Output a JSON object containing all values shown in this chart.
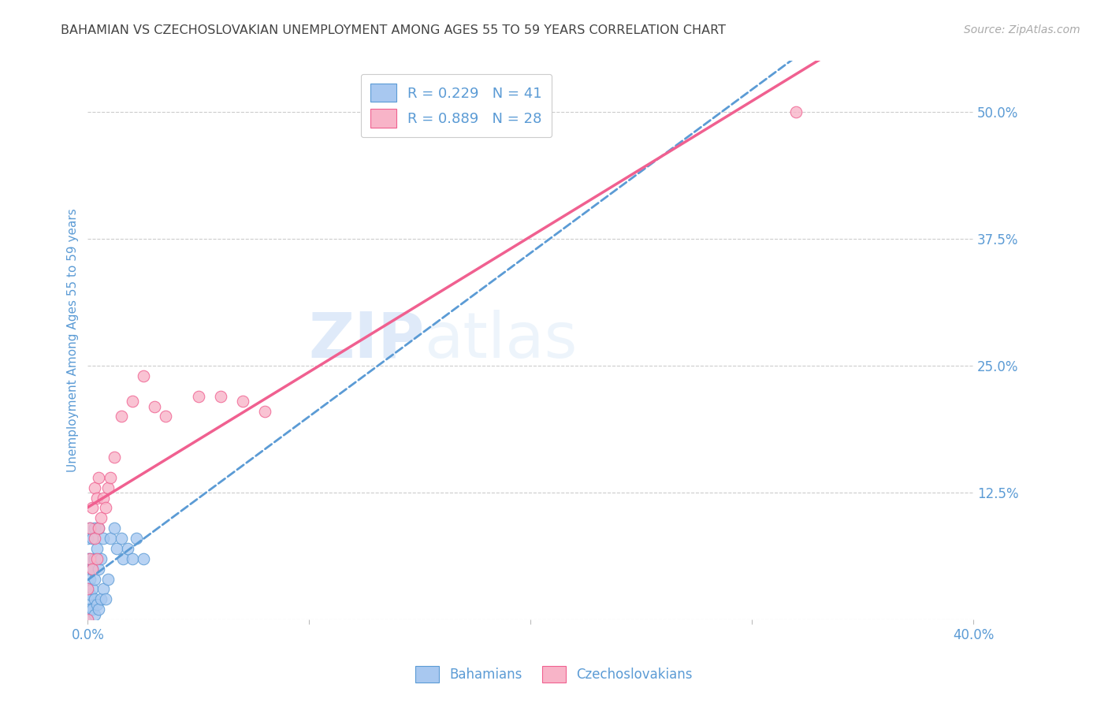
{
  "title": "BAHAMIAN VS CZECHOSLOVAKIAN UNEMPLOYMENT AMONG AGES 55 TO 59 YEARS CORRELATION CHART",
  "source": "Source: ZipAtlas.com",
  "ylabel": "Unemployment Among Ages 55 to 59 years",
  "xlim": [
    0.0,
    0.4
  ],
  "ylim": [
    0.0,
    0.55
  ],
  "x_ticks": [
    0.0,
    0.1,
    0.2,
    0.3,
    0.4
  ],
  "x_tick_labels": [
    "0.0%",
    "",
    "",
    "",
    "40.0%"
  ],
  "y_ticks_right": [
    0.0,
    0.125,
    0.25,
    0.375,
    0.5
  ],
  "y_tick_labels_right": [
    "",
    "12.5%",
    "25.0%",
    "37.5%",
    "50.0%"
  ],
  "bahamian_color": "#a8c8f0",
  "czechoslovakian_color": "#f8b4c8",
  "bahamian_edge_color": "#5b9bd5",
  "czechoslovakian_edge_color": "#f06090",
  "bahamian_line_color": "#5b9bd5",
  "czechoslovakian_line_color": "#f06090",
  "legend_r_bahamian": "R = 0.229",
  "legend_n_bahamian": "N = 41",
  "legend_r_czech": "R = 0.889",
  "legend_n_czech": "N = 28",
  "watermark_zip": "ZIP",
  "watermark_atlas": "atlas",
  "background_color": "#ffffff",
  "grid_color": "#cccccc",
  "title_color": "#444444",
  "axis_label_color": "#5b9bd5",
  "tick_label_color": "#5b9bd5",
  "bahamian_x": [
    0.0,
    0.0,
    0.0,
    0.0,
    0.0,
    0.0,
    0.0,
    0.001,
    0.001,
    0.001,
    0.001,
    0.001,
    0.002,
    0.002,
    0.002,
    0.002,
    0.003,
    0.003,
    0.003,
    0.003,
    0.003,
    0.004,
    0.004,
    0.005,
    0.005,
    0.005,
    0.006,
    0.006,
    0.007,
    0.007,
    0.008,
    0.009,
    0.01,
    0.012,
    0.013,
    0.015,
    0.016,
    0.018,
    0.02,
    0.022,
    0.025
  ],
  "bahamian_y": [
    0.0,
    0.01,
    0.02,
    0.03,
    0.05,
    0.06,
    0.08,
    0.01,
    0.025,
    0.04,
    0.06,
    0.09,
    0.01,
    0.03,
    0.05,
    0.08,
    0.005,
    0.02,
    0.04,
    0.06,
    0.09,
    0.015,
    0.07,
    0.01,
    0.05,
    0.09,
    0.02,
    0.06,
    0.03,
    0.08,
    0.02,
    0.04,
    0.08,
    0.09,
    0.07,
    0.08,
    0.06,
    0.07,
    0.06,
    0.08,
    0.06
  ],
  "czech_x": [
    0.0,
    0.0,
    0.001,
    0.001,
    0.002,
    0.002,
    0.003,
    0.003,
    0.004,
    0.004,
    0.005,
    0.005,
    0.006,
    0.007,
    0.008,
    0.009,
    0.01,
    0.012,
    0.015,
    0.02,
    0.025,
    0.03,
    0.035,
    0.05,
    0.06,
    0.07,
    0.08,
    0.32
  ],
  "czech_y": [
    0.0,
    0.03,
    0.06,
    0.09,
    0.05,
    0.11,
    0.08,
    0.13,
    0.06,
    0.12,
    0.09,
    0.14,
    0.1,
    0.12,
    0.11,
    0.13,
    0.14,
    0.16,
    0.2,
    0.215,
    0.24,
    0.21,
    0.2,
    0.22,
    0.22,
    0.215,
    0.205,
    0.5
  ]
}
